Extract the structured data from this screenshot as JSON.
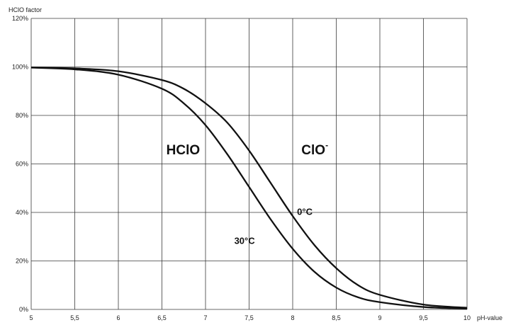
{
  "chart_data": {
    "type": "line",
    "ylabel": "HClO factor",
    "xlabel": "pH-value",
    "xlim": [
      5,
      10
    ],
    "ylim": [
      0,
      120
    ],
    "grid": true,
    "x_ticks": [
      {
        "v": 5,
        "label": "5"
      },
      {
        "v": 5.5,
        "label": "5,5"
      },
      {
        "v": 6,
        "label": "6"
      },
      {
        "v": 6.5,
        "label": "6,5"
      },
      {
        "v": 7,
        "label": "7"
      },
      {
        "v": 7.5,
        "label": "7,5"
      },
      {
        "v": 8,
        "label": "8"
      },
      {
        "v": 8.5,
        "label": "8,5"
      },
      {
        "v": 9,
        "label": "9"
      },
      {
        "v": 9.5,
        "label": "9,5"
      },
      {
        "v": 10,
        "label": "10"
      }
    ],
    "y_ticks": [
      {
        "v": 0,
        "label": "0%"
      },
      {
        "v": 20,
        "label": "20%"
      },
      {
        "v": 40,
        "label": "40%"
      },
      {
        "v": 60,
        "label": "60%"
      },
      {
        "v": 80,
        "label": "80%"
      },
      {
        "v": 100,
        "label": "100%"
      },
      {
        "v": 120,
        "label": "120%"
      }
    ],
    "series": [
      {
        "name": "0°C",
        "x": [
          5.0,
          5.5,
          6.0,
          6.5,
          6.75,
          7.0,
          7.25,
          7.5,
          7.75,
          8.0,
          8.25,
          8.5,
          8.75,
          9.0,
          9.5,
          10.0
        ],
        "y": [
          99.8,
          99.4,
          98.2,
          94.6,
          91.0,
          85.0,
          77.0,
          65.5,
          52.0,
          38.5,
          26.5,
          17.0,
          10.0,
          6.0,
          2.0,
          0.7
        ]
      },
      {
        "name": "30°C",
        "x": [
          5.0,
          5.5,
          6.0,
          6.5,
          6.75,
          7.0,
          7.25,
          7.5,
          7.75,
          8.0,
          8.25,
          8.5,
          8.75,
          9.0,
          9.5,
          10.0
        ],
        "y": [
          99.7,
          99.0,
          96.8,
          91.0,
          85.0,
          76.0,
          64.0,
          50.5,
          37.0,
          25.0,
          15.5,
          9.0,
          5.0,
          3.0,
          1.0,
          0.3
        ]
      }
    ],
    "annotations": [
      {
        "text": "HClO",
        "x": 6.55,
        "y": 64
      },
      {
        "text": "ClO",
        "sup": "-",
        "x": 8.1,
        "y": 64
      },
      {
        "text": "0°C",
        "x": 8.05,
        "y": 39
      },
      {
        "text": "30°C",
        "x": 7.33,
        "y": 27
      }
    ]
  }
}
